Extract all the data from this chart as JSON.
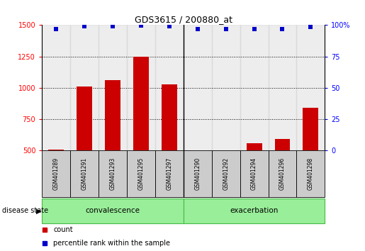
{
  "title": "GDS3615 / 200880_at",
  "samples": [
    "GSM401289",
    "GSM401291",
    "GSM401293",
    "GSM401295",
    "GSM401297",
    "GSM401290",
    "GSM401292",
    "GSM401294",
    "GSM401296",
    "GSM401298"
  ],
  "counts": [
    510,
    1010,
    1060,
    1250,
    1030,
    470,
    470,
    560,
    590,
    840
  ],
  "percentiles": [
    97,
    99,
    99,
    99.5,
    99,
    97,
    97,
    97,
    97,
    98.5
  ],
  "group_split": 5,
  "ylim_left": [
    500,
    1500
  ],
  "ylim_right": [
    0,
    100
  ],
  "yticks_left": [
    500,
    750,
    1000,
    1250,
    1500
  ],
  "yticks_right": [
    0,
    25,
    50,
    75,
    100
  ],
  "bar_color": "#cc0000",
  "dot_color": "#0000cc",
  "sample_bg": "#cccccc",
  "group_bg": "#99ee99",
  "group_border": "#44bb44",
  "label_count": "count",
  "label_percentile": "percentile rank within the sample",
  "disease_state_label": "disease state",
  "title_fontsize": 9,
  "tick_fontsize": 7,
  "bar_width": 0.55
}
